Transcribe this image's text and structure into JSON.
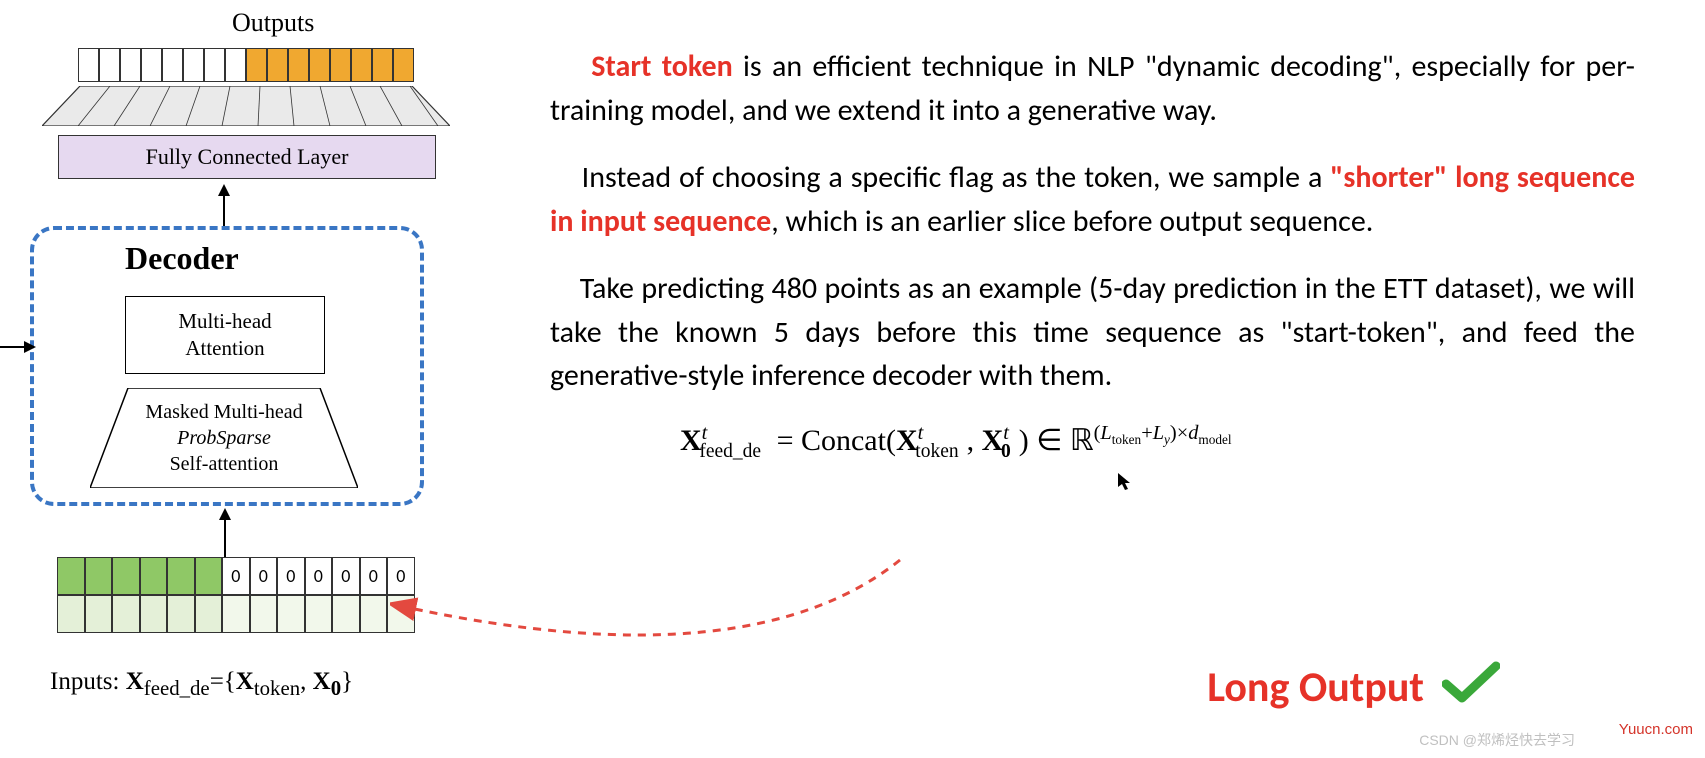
{
  "diagram": {
    "outputs_label": "Outputs",
    "output_cells": {
      "white_count": 8,
      "yellow_count": 8,
      "white_color": "#ffffff",
      "yellow_color": "#f0a830"
    },
    "fc_layer": {
      "label": "Fully Connected Layer",
      "bg_color": "#e6d9f0"
    },
    "decoder": {
      "title": "Decoder",
      "border_color": "#3a76c4",
      "mha": {
        "line1": "Multi-head",
        "line2": "Attention"
      },
      "masked": {
        "line1": "Masked Multi-head",
        "line2": "ProbSparse",
        "line3": "Self-attention"
      }
    },
    "inputs": {
      "row1_green_count": 6,
      "row1_zero_cells": [
        "0",
        "0",
        "0",
        "0",
        "0",
        "0",
        "0"
      ],
      "row2_lightgreen_count": 6,
      "row2_lighter_count": 7,
      "green": "#8fc866",
      "lightgreen": "#e4f0d8",
      "lighter": "#f2f8eb"
    },
    "inputs_label_prefix": "Inputs:   ",
    "inputs_formula": "X_feed_de = {X_token, X_0}"
  },
  "text": {
    "p1_lead": "Start token",
    "p1_rest": " is an efficient technique in NLP \"dynamic decoding\", especially for per-training model, and we extend it into a generative way.",
    "p2_pre": "Instead of choosing a specific flag as the token, we sample a ",
    "p2_red": "\"shorter\" long sequence in input sequence",
    "p2_post": ", which is an earlier slice before output sequence.",
    "p3": "Take predicting 480 points as an example (5-day prediction in the ETT dataset), we will take the known 5 days before this time sequence as \"start-token\", and feed the generative-style inference decoder with them.",
    "long_output": "Long Output"
  },
  "formula": {
    "lhs_base": "X",
    "lhs_sup": "t",
    "lhs_sub": "feed_de",
    "eq": " = Concat(",
    "t1_base": "X",
    "t1_sup": "t",
    "t1_sub": "token",
    "comma": ", ",
    "t2_base": "X",
    "t2_sup": "t",
    "t2_sub": "0",
    "close": ") ∈ ℝ",
    "exp": "(L_token + L_y) × d_model"
  },
  "colors": {
    "red": "#e63228",
    "green_check": "#3aa83a",
    "arrow_red": "#e3493f"
  },
  "watermarks": {
    "csdn": "CSDN @郑烯烃快去学习",
    "yuucn": "Yuucn.com"
  }
}
